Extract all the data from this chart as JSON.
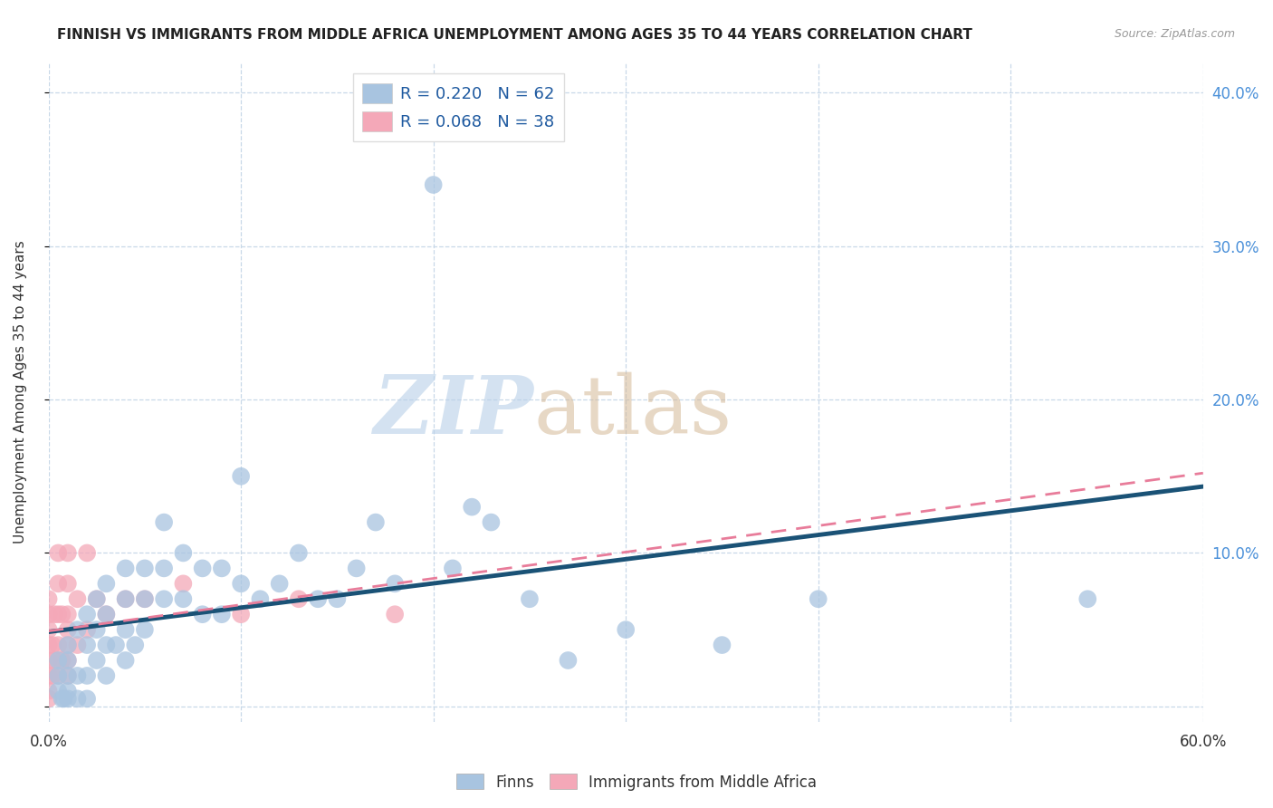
{
  "title": "FINNISH VS IMMIGRANTS FROM MIDDLE AFRICA UNEMPLOYMENT AMONG AGES 35 TO 44 YEARS CORRELATION CHART",
  "source": "Source: ZipAtlas.com",
  "ylabel": "Unemployment Among Ages 35 to 44 years",
  "xlim": [
    0.0,
    0.6
  ],
  "ylim": [
    -0.01,
    0.42
  ],
  "xticks": [
    0.0,
    0.1,
    0.2,
    0.3,
    0.4,
    0.5,
    0.6
  ],
  "yticks": [
    0.0,
    0.1,
    0.2,
    0.3,
    0.4
  ],
  "ytick_labels_right": [
    "",
    "10.0%",
    "20.0%",
    "30.0%",
    "40.0%"
  ],
  "xtick_labels_sparse": [
    "0.0%",
    "",
    "",
    "",
    "",
    "",
    "60.0%"
  ],
  "legend_r1": "R = 0.220",
  "legend_n1": "N = 62",
  "legend_r2": "R = 0.068",
  "legend_n2": "N = 38",
  "finns_color": "#a8c4e0",
  "immigrants_color": "#f4a8b8",
  "finns_line_color": "#1a5276",
  "immigrants_line_color": "#e87c9a",
  "grid_color": "#c8d8e8",
  "background_color": "#ffffff",
  "finns_x": [
    0.005,
    0.005,
    0.005,
    0.007,
    0.008,
    0.01,
    0.01,
    0.01,
    0.01,
    0.01,
    0.015,
    0.015,
    0.015,
    0.02,
    0.02,
    0.02,
    0.02,
    0.025,
    0.025,
    0.025,
    0.03,
    0.03,
    0.03,
    0.03,
    0.035,
    0.04,
    0.04,
    0.04,
    0.04,
    0.045,
    0.05,
    0.05,
    0.05,
    0.06,
    0.06,
    0.06,
    0.07,
    0.07,
    0.08,
    0.08,
    0.09,
    0.09,
    0.1,
    0.1,
    0.11,
    0.12,
    0.13,
    0.14,
    0.15,
    0.16,
    0.17,
    0.18,
    0.2,
    0.21,
    0.22,
    0.23,
    0.25,
    0.27,
    0.3,
    0.35,
    0.4,
    0.54
  ],
  "finns_y": [
    0.01,
    0.02,
    0.03,
    0.005,
    0.005,
    0.005,
    0.01,
    0.02,
    0.03,
    0.04,
    0.005,
    0.02,
    0.05,
    0.005,
    0.02,
    0.04,
    0.06,
    0.03,
    0.05,
    0.07,
    0.02,
    0.04,
    0.06,
    0.08,
    0.04,
    0.03,
    0.05,
    0.07,
    0.09,
    0.04,
    0.05,
    0.07,
    0.09,
    0.07,
    0.09,
    0.12,
    0.07,
    0.1,
    0.06,
    0.09,
    0.06,
    0.09,
    0.08,
    0.15,
    0.07,
    0.08,
    0.1,
    0.07,
    0.07,
    0.09,
    0.12,
    0.08,
    0.34,
    0.09,
    0.13,
    0.12,
    0.07,
    0.03,
    0.05,
    0.04,
    0.07,
    0.07
  ],
  "immigrants_x": [
    0.0,
    0.0,
    0.0,
    0.0,
    0.0,
    0.0,
    0.0,
    0.0,
    0.002,
    0.002,
    0.003,
    0.003,
    0.005,
    0.005,
    0.005,
    0.005,
    0.005,
    0.007,
    0.007,
    0.01,
    0.01,
    0.01,
    0.01,
    0.01,
    0.01,
    0.01,
    0.015,
    0.015,
    0.02,
    0.02,
    0.025,
    0.03,
    0.04,
    0.05,
    0.07,
    0.1,
    0.13,
    0.18
  ],
  "immigrants_y": [
    0.005,
    0.01,
    0.02,
    0.03,
    0.04,
    0.05,
    0.06,
    0.07,
    0.02,
    0.04,
    0.03,
    0.06,
    0.02,
    0.04,
    0.06,
    0.08,
    0.1,
    0.03,
    0.06,
    0.02,
    0.04,
    0.06,
    0.08,
    0.1,
    0.03,
    0.05,
    0.04,
    0.07,
    0.05,
    0.1,
    0.07,
    0.06,
    0.07,
    0.07,
    0.08,
    0.06,
    0.07,
    0.06
  ]
}
